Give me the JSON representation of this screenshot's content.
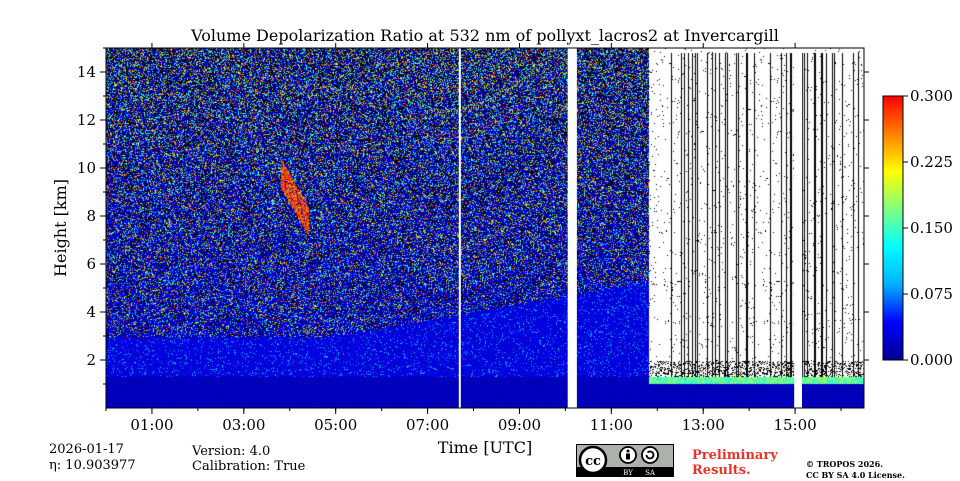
{
  "chart_data": {
    "type": "heatmap",
    "title": "Volume Depolarization Ratio at 532 nm of pollyxt_lacros2 at Invercargill",
    "xlabel": "Time [UTC]",
    "ylabel": "Height [km]",
    "x_unit": "hours UTC",
    "xlim": [
      0,
      16.5
    ],
    "ylim": [
      0,
      15
    ],
    "x_ticks": [
      {
        "value": 1,
        "label": "01:00"
      },
      {
        "value": 3,
        "label": "03:00"
      },
      {
        "value": 5,
        "label": "05:00"
      },
      {
        "value": 7,
        "label": "07:00"
      },
      {
        "value": 9,
        "label": "09:00"
      },
      {
        "value": 11,
        "label": "11:00"
      },
      {
        "value": 13,
        "label": "13:00"
      },
      {
        "value": 15,
        "label": "15:00"
      }
    ],
    "y_ticks": [
      {
        "value": 2,
        "label": "2"
      },
      {
        "value": 4,
        "label": "4"
      },
      {
        "value": 6,
        "label": "6"
      },
      {
        "value": 8,
        "label": "8"
      },
      {
        "value": 10,
        "label": "10"
      },
      {
        "value": 12,
        "label": "12"
      },
      {
        "value": 14,
        "label": "14"
      }
    ],
    "colorbar": {
      "range": [
        0,
        0.3
      ],
      "colormap": "jet",
      "ticks": [
        {
          "value": 0,
          "label": "0.000"
        },
        {
          "value": 0.075,
          "label": "0.075"
        },
        {
          "value": 0.15,
          "label": "0.150"
        },
        {
          "value": 0.225,
          "label": "0.225"
        },
        {
          "value": 0.3,
          "label": "0.300"
        }
      ]
    },
    "features": [
      {
        "name": "boundary layer (low depol)",
        "t_start": 0,
        "t_end": 16.5,
        "h_top": 1.3,
        "value": 0.01
      },
      {
        "name": "aerosol layer",
        "t_start": 0,
        "t_end": 11.8,
        "h_top": 3.0,
        "value": 0.03
      },
      {
        "name": "cirrus/ice cloud streak",
        "t_start": 3.8,
        "t_end": 4.4,
        "h_bottom": 7.7,
        "h_top": 9.8,
        "value": 0.28
      },
      {
        "name": "cloud base (high depol)",
        "t_start": 12.0,
        "t_end": 16.3,
        "h": 1.2,
        "value": 0.18
      }
    ],
    "data_gaps": [
      {
        "t_start": 7.68,
        "t_end": 7.72
      },
      {
        "t_start": 10.05,
        "t_end": 10.25
      },
      {
        "t_start": 14.98,
        "t_end": 15.15
      }
    ]
  },
  "colors": {
    "cmap_stops": [
      "#00008f",
      "#0000ff",
      "#00b0ff",
      "#00ffff",
      "#80ff80",
      "#ffff00",
      "#ff8000",
      "#ff0000",
      "#800000"
    ]
  },
  "footer": {
    "date": "2026-01-17",
    "eta": "η: 10.903977",
    "version": "Version: 4.0",
    "calibration": "Calibration: True",
    "preliminary_line1": "Preliminary",
    "preliminary_line2": "Results.",
    "copyright_line1": "© TROPOS 2026.",
    "copyright_line2": "CC BY SA 4.0 License.",
    "cc_label": "cc",
    "by_label": "BY",
    "sa_label": "SA"
  }
}
